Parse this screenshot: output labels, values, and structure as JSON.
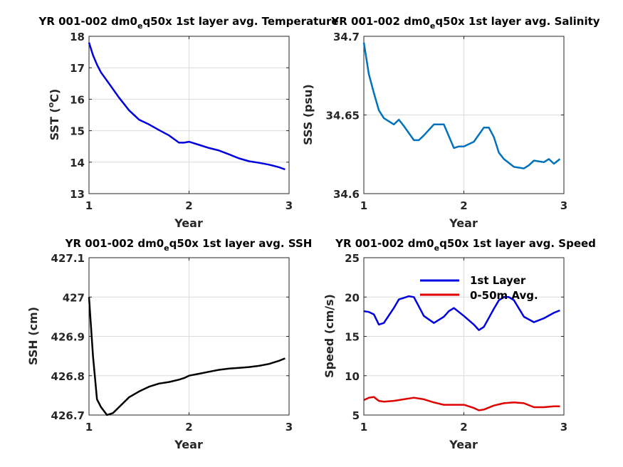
{
  "figure_colors": {
    "blue": "#0000e0",
    "teal": "#0072bd",
    "black": "#000000",
    "red": "#e00000"
  },
  "chart_data": [
    {
      "id": "sst",
      "type": "line",
      "title": "YR 001-002 dm0ₑq50x 1st layer avg. Temperature",
      "title_parts": [
        "YR 001-002 dm0",
        "e",
        "q50x 1st layer avg. Temperature"
      ],
      "xlabel": "Year",
      "ylabel": "SST (°C)",
      "ylabel_parts": [
        "SST (",
        "o",
        "C)"
      ],
      "xlim": [
        1,
        3
      ],
      "ylim": [
        13,
        18
      ],
      "xticks": [
        1,
        2,
        3
      ],
      "yticks": [
        13,
        14,
        15,
        16,
        17,
        18
      ],
      "ytick_labels": [
        "13",
        "14",
        "15",
        "16",
        "17",
        "18"
      ],
      "grid": true,
      "series": [
        {
          "color": "#0000e0",
          "x": [
            1.0,
            1.04,
            1.08,
            1.12,
            1.2,
            1.3,
            1.4,
            1.5,
            1.6,
            1.7,
            1.8,
            1.9,
            1.95,
            2.0,
            2.1,
            2.2,
            2.3,
            2.4,
            2.5,
            2.6,
            2.7,
            2.8,
            2.9,
            2.96
          ],
          "y": [
            17.8,
            17.4,
            17.1,
            16.85,
            16.5,
            16.05,
            15.65,
            15.35,
            15.2,
            15.02,
            14.85,
            14.62,
            14.62,
            14.65,
            14.55,
            14.45,
            14.37,
            14.25,
            14.12,
            14.03,
            13.98,
            13.92,
            13.84,
            13.77
          ]
        }
      ]
    },
    {
      "id": "sss",
      "type": "line",
      "title": "YR 001-002 dm0ₑq50x 1st layer avg. Salinity",
      "title_parts": [
        "YR 001-002 dm0",
        "e",
        "q50x 1st layer avg. Salinity"
      ],
      "xlabel": "Year",
      "ylabel": "SSS (psu)",
      "ylabel_parts": [
        "SSS (psu)",
        "",
        ""
      ],
      "xlim": [
        1,
        3
      ],
      "ylim": [
        34.6,
        34.7
      ],
      "xticks": [
        1,
        2,
        3
      ],
      "yticks": [
        34.6,
        34.65,
        34.7
      ],
      "ytick_labels": [
        "34.6",
        "34.65",
        "34.7"
      ],
      "grid": true,
      "series": [
        {
          "color": "#0072bd",
          "x": [
            1.0,
            1.05,
            1.1,
            1.15,
            1.2,
            1.3,
            1.35,
            1.4,
            1.5,
            1.55,
            1.6,
            1.7,
            1.75,
            1.8,
            1.9,
            1.95,
            2.0,
            2.1,
            2.2,
            2.25,
            2.3,
            2.35,
            2.4,
            2.5,
            2.6,
            2.65,
            2.7,
            2.8,
            2.85,
            2.9,
            2.96
          ],
          "y": [
            34.696,
            34.676,
            34.664,
            34.653,
            34.648,
            34.644,
            34.647,
            34.643,
            34.634,
            34.634,
            34.637,
            34.644,
            34.644,
            34.644,
            34.629,
            34.63,
            34.63,
            34.633,
            34.642,
            34.642,
            34.636,
            34.626,
            34.622,
            34.617,
            34.616,
            34.618,
            34.621,
            34.62,
            34.622,
            34.619,
            34.622
          ]
        }
      ]
    },
    {
      "id": "ssh",
      "type": "line",
      "title": "YR 001-002 dm0ₑq50x 1st layer avg. SSH",
      "title_parts": [
        "YR 001-002 dm0",
        "e",
        "q50x 1st layer avg. SSH"
      ],
      "xlabel": "Year",
      "ylabel": "SSH (cm)",
      "ylabel_parts": [
        "SSH (cm)",
        "",
        ""
      ],
      "xlim": [
        1,
        3
      ],
      "ylim": [
        426.7,
        427.1
      ],
      "xticks": [
        1,
        2,
        3
      ],
      "yticks": [
        426.7,
        426.8,
        426.9,
        427.0,
        427.1
      ],
      "ytick_labels": [
        "426.7",
        "426.8",
        "426.9",
        "427",
        "427.1"
      ],
      "grid": true,
      "series": [
        {
          "color": "#000000",
          "x": [
            1.0,
            1.04,
            1.08,
            1.12,
            1.18,
            1.24,
            1.3,
            1.4,
            1.5,
            1.6,
            1.7,
            1.8,
            1.9,
            1.95,
            2.0,
            2.1,
            2.2,
            2.3,
            2.4,
            2.5,
            2.6,
            2.7,
            2.8,
            2.9,
            2.96
          ],
          "y": [
            427.0,
            426.85,
            426.74,
            426.72,
            426.7,
            426.705,
            426.72,
            426.745,
            426.76,
            426.772,
            426.78,
            426.784,
            426.79,
            426.794,
            426.8,
            426.805,
            426.81,
            426.815,
            426.818,
            426.82,
            426.822,
            426.825,
            426.83,
            426.838,
            426.844
          ]
        }
      ]
    },
    {
      "id": "speed",
      "type": "line",
      "title": "YR 001-002 dm0ₑq50x 1st layer avg. Speed",
      "title_parts": [
        "YR 001-002 dm0",
        "e",
        "q50x 1st layer avg. Speed"
      ],
      "xlabel": "Year",
      "ylabel": "Speed (cm/s)",
      "ylabel_parts": [
        "Speed (cm/s)",
        "",
        ""
      ],
      "xlim": [
        1,
        3
      ],
      "ylim": [
        5,
        25
      ],
      "xticks": [
        1,
        2,
        3
      ],
      "yticks": [
        5,
        10,
        15,
        20,
        25
      ],
      "ytick_labels": [
        "5",
        "10",
        "15",
        "20",
        "25"
      ],
      "grid": true,
      "legend_position": "top-right",
      "series": [
        {
          "name": "1st Layer",
          "color": "#0000e0",
          "x": [
            1.0,
            1.05,
            1.1,
            1.15,
            1.2,
            1.3,
            1.35,
            1.4,
            1.45,
            1.5,
            1.6,
            1.7,
            1.8,
            1.85,
            1.9,
            2.0,
            2.1,
            2.15,
            2.2,
            2.3,
            2.35,
            2.4,
            2.45,
            2.5,
            2.6,
            2.7,
            2.8,
            2.9,
            2.96
          ],
          "y": [
            18.2,
            18.1,
            17.8,
            16.5,
            16.7,
            18.6,
            19.7,
            19.9,
            20.1,
            20.0,
            17.6,
            16.7,
            17.5,
            18.2,
            18.6,
            17.6,
            16.5,
            15.8,
            16.2,
            18.5,
            19.6,
            20.0,
            20.0,
            19.6,
            17.5,
            16.8,
            17.3,
            18.0,
            18.3
          ]
        },
        {
          "name": "0-50m Avg.",
          "color": "#e00000",
          "x": [
            1.0,
            1.05,
            1.1,
            1.15,
            1.2,
            1.3,
            1.4,
            1.5,
            1.6,
            1.7,
            1.8,
            1.9,
            2.0,
            2.1,
            2.15,
            2.2,
            2.3,
            2.4,
            2.5,
            2.6,
            2.7,
            2.8,
            2.9,
            2.96
          ],
          "y": [
            6.9,
            7.2,
            7.3,
            6.8,
            6.7,
            6.8,
            7.0,
            7.2,
            7.0,
            6.6,
            6.3,
            6.3,
            6.3,
            5.9,
            5.6,
            5.7,
            6.2,
            6.5,
            6.6,
            6.5,
            6.0,
            6.0,
            6.1,
            6.1
          ]
        }
      ]
    }
  ]
}
